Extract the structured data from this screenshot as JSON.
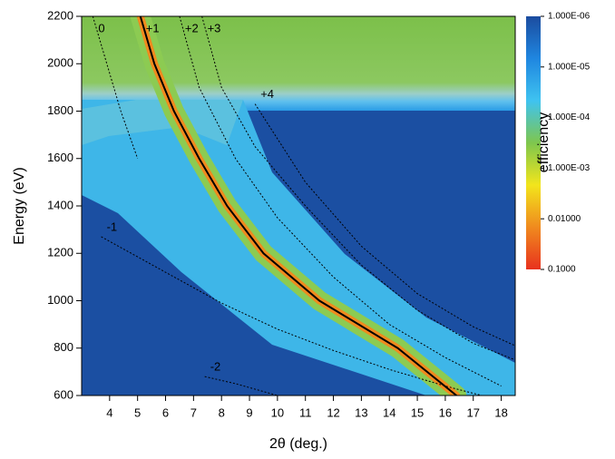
{
  "chart_data": {
    "type": "line",
    "xlabel": "2θ (deg.)",
    "ylabel": "Energy (eV)",
    "xlim": [
      3,
      18.5
    ],
    "ylim": [
      600,
      2200
    ],
    "xticks": [
      4,
      5,
      6,
      7,
      8,
      9,
      10,
      11,
      12,
      13,
      14,
      15,
      16,
      17,
      18
    ],
    "yticks": [
      600,
      800,
      1000,
      1200,
      1400,
      1600,
      1800,
      2000,
      2200
    ],
    "colorbar": {
      "label": "efficiency",
      "log": true,
      "clim": [
        1e-06,
        0.1
      ],
      "colors": [
        "#1b4c9f",
        "#1f86e0",
        "#3fc3f0",
        "#7ec64e",
        "#f2e51c",
        "#f08a1e",
        "#e8321e"
      ],
      "ticks": [
        {
          "value": 1e-06,
          "label": "1.000E-06"
        },
        {
          "value": 1e-05,
          "label": "1.000E-05"
        },
        {
          "value": 0.0001,
          "label": "1.000E-04"
        },
        {
          "value": 0.001,
          "label": "1.000E-03"
        },
        {
          "value": 0.01,
          "label": "0.01000"
        },
        {
          "value": 0.1,
          "label": "0.1000"
        }
      ]
    },
    "series": [
      {
        "name": "0",
        "color": "#000000",
        "dashed": true,
        "x": [
          3.4,
          3.9,
          4.4,
          5.0
        ],
        "y": [
          2200,
          2000,
          1800,
          1600
        ]
      },
      {
        "name": "+1",
        "color": "#000000",
        "dashed": false,
        "x": [
          5.1,
          5.6,
          6.3,
          7.2,
          8.2,
          9.5,
          11.5,
          14.3,
          16.4
        ],
        "y": [
          2200,
          2000,
          1800,
          1600,
          1400,
          1200,
          1000,
          800,
          600
        ]
      },
      {
        "name": "+2",
        "color": "#000000",
        "dashed": true,
        "x": [
          6.5,
          7.2,
          8.5,
          10,
          12,
          14,
          16,
          18
        ],
        "y": [
          2200,
          1900,
          1600,
          1350,
          1100,
          900,
          760,
          640
        ]
      },
      {
        "name": "+3",
        "color": "#000000",
        "dashed": true,
        "x": [
          7.3,
          8.0,
          9.2,
          11,
          13,
          15,
          17,
          18.5
        ],
        "y": [
          2200,
          1900,
          1650,
          1400,
          1150,
          960,
          820,
          750
        ]
      },
      {
        "name": "+4",
        "color": "#000000",
        "dashed": true,
        "x": [
          9.2,
          11,
          13,
          15,
          17,
          18.5
        ],
        "y": [
          1830,
          1500,
          1230,
          1030,
          890,
          810
        ]
      },
      {
        "name": "-1",
        "color": "#000000",
        "dashed": true,
        "x": [
          3.7,
          6,
          8,
          10,
          12,
          14,
          16,
          17.3
        ],
        "y": [
          1270,
          1120,
          990,
          880,
          790,
          710,
          640,
          600
        ]
      },
      {
        "name": "-2",
        "color": "#000000",
        "dashed": true,
        "x": [
          7.4,
          8.5,
          10
        ],
        "y": [
          680,
          650,
          600
        ]
      }
    ]
  }
}
